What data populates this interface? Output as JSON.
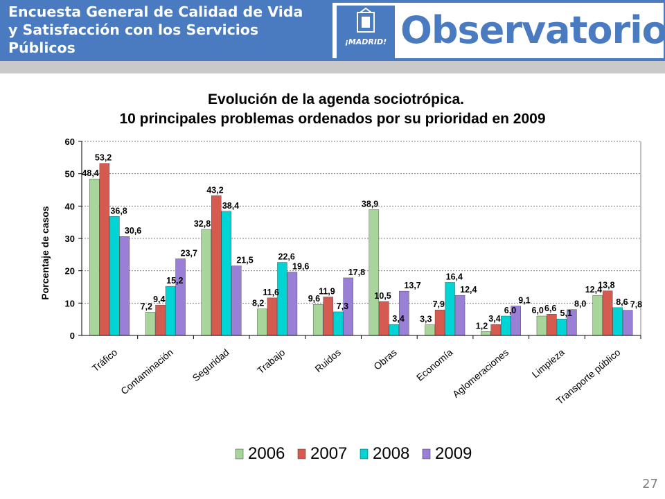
{
  "header": {
    "title": "Encuesta General de Calidad de Vida y Satisfacción con los Servicios Públicos",
    "madrid_logo_text": "¡MADRID!",
    "observatorio_logo_text": "Observatorio"
  },
  "page_number": "27",
  "colors": {
    "header_bg": "#4a7bc0",
    "strip": "#c9c9c9",
    "s2006": "#a8d59a",
    "s2007": "#d55a50",
    "s2008": "#00d4d4",
    "s2009": "#9a7fd6"
  },
  "chart_data": {
    "type": "bar",
    "title_line1": "Evolución de la agenda sociotrópica.",
    "title_line2": "10 principales problemas ordenados por su prioridad en 2009",
    "ylabel": "Porcentaje de casos",
    "xlabel": "",
    "ylim": [
      0,
      60
    ],
    "yticks": [
      "0",
      "10",
      "20",
      "30",
      "40",
      "50",
      "60"
    ],
    "grid": true,
    "legend_position": "bottom",
    "categories": [
      "Tráfico",
      "Contaminación",
      "Seguridad",
      "Trabajo",
      "Ruidos",
      "Obras",
      "Economía",
      "Aglomeraciones",
      "Limpieza",
      "Transporte público"
    ],
    "series": [
      {
        "name": "2006",
        "values": [
          48.4,
          7.2,
          32.8,
          8.2,
          9.6,
          38.9,
          3.3,
          1.2,
          6.0,
          12.4
        ],
        "labels": [
          "48,4",
          "7,2",
          "32,8",
          "8,2",
          "9,6",
          "38,9",
          "3,3",
          "1,2",
          "6,0",
          "12,4"
        ]
      },
      {
        "name": "2007",
        "values": [
          53.2,
          9.4,
          43.2,
          11.6,
          11.9,
          10.5,
          7.9,
          3.4,
          6.6,
          13.8
        ],
        "labels": [
          "53,2",
          "9,4",
          "43,2",
          "11,6",
          "11,9",
          "10,5",
          "7,9",
          "3,4",
          "6,6",
          "13,8"
        ]
      },
      {
        "name": "2008",
        "values": [
          36.8,
          15.2,
          38.4,
          22.6,
          7.3,
          3.4,
          16.4,
          6.0,
          5.1,
          8.6
        ],
        "labels": [
          "36,8",
          "15,2",
          "38,4",
          "22,6",
          "7,3",
          "3,4",
          "16,4",
          "6,0",
          "5,1",
          "8,6"
        ]
      },
      {
        "name": "2009",
        "values": [
          30.6,
          23.7,
          21.5,
          19.6,
          17.8,
          13.7,
          12.4,
          9.1,
          8.0,
          7.8
        ],
        "labels": [
          "30,6",
          "23,7",
          "21,5",
          "19,6",
          "17,8",
          "13,7",
          "12,4",
          "9,1",
          "8,0",
          "7,8"
        ]
      }
    ]
  }
}
